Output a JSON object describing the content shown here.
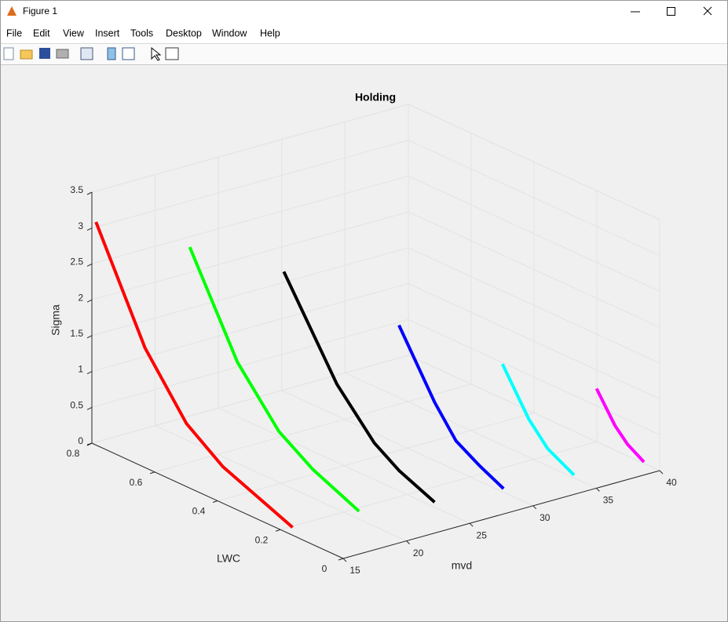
{
  "window": {
    "title": "Figure 1",
    "menu": [
      "File",
      "Edit",
      "View",
      "Insert",
      "Tools",
      "Desktop",
      "Window",
      "Help"
    ]
  },
  "chart_data": {
    "type": "line3d",
    "title": "Holding",
    "x_label": "mvd",
    "y_label": "LWC",
    "z_label": "Sigma",
    "xlim": [
      15,
      40
    ],
    "ylim": [
      0,
      0.8
    ],
    "zlim": [
      0,
      3.5
    ],
    "xticks": [
      15,
      20,
      25,
      30,
      35,
      40
    ],
    "yticks": [
      0,
      0.2,
      0.4,
      0.6,
      0.8
    ],
    "zticks": [
      0,
      0.5,
      1,
      1.5,
      2,
      2.5,
      3,
      3.5
    ],
    "grid": true,
    "series": [
      {
        "color": "#ff0000",
        "x": [
          15,
          15,
          15,
          15,
          15,
          15
        ],
        "y": [
          0.787,
          0.631,
          0.499,
          0.383,
          0.266,
          0.161
        ],
        "z": [
          3.11,
          1.67,
          0.88,
          0.51,
          0.3,
          0.11
        ]
      },
      {
        "color": "#00ff00",
        "x": [
          20,
          20,
          20,
          20,
          20
        ],
        "y": [
          0.69,
          0.538,
          0.406,
          0.299,
          0.151
        ],
        "z": [
          2.71,
          1.41,
          0.71,
          0.4,
          0.11
        ]
      },
      {
        "color": "#000000",
        "x": [
          25,
          25,
          25,
          25,
          25
        ],
        "y": [
          0.592,
          0.423,
          0.304,
          0.224,
          0.112
        ],
        "z": [
          2.32,
          1.09,
          0.51,
          0.28,
          0.07
        ]
      },
      {
        "color": "#0000ff",
        "x": [
          30,
          30,
          30,
          30,
          30
        ],
        "y": [
          0.427,
          0.313,
          0.245,
          0.168,
          0.094
        ],
        "z": [
          1.66,
          0.81,
          0.41,
          0.21,
          0.05
        ]
      },
      {
        "color": "#00ffff",
        "x": [
          35,
          35,
          35,
          35
        ],
        "y": [
          0.299,
          0.215,
          0.155,
          0.071
        ],
        "z": [
          1.13,
          0.53,
          0.24,
          0.04
        ]
      },
      {
        "color": "#ff00ff",
        "x": [
          40,
          40,
          40,
          40
        ],
        "y": [
          0.201,
          0.142,
          0.102,
          0.05
        ],
        "z": [
          0.74,
          0.34,
          0.16,
          0.02
        ]
      }
    ]
  }
}
